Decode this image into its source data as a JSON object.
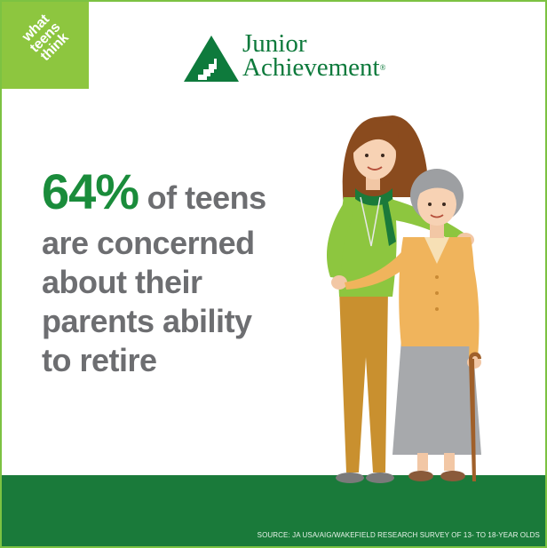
{
  "badge": {
    "line1": "what",
    "line2": "teens",
    "line3": "think"
  },
  "logo": {
    "line1": "Junior",
    "line2": "Achievement",
    "registered": "®"
  },
  "headline": {
    "percent": "64%",
    "line1_rest": " of teens",
    "line2": "are concerned",
    "line3": "about their",
    "line4": "parents ability",
    "line5": "to retire"
  },
  "source": "SOURCE: JA USA/AIG/WAKEFIELD RESEARCH SURVEY OF 13- TO 18-YEAR OLDS",
  "colors": {
    "brand_green": "#1a8c3b",
    "light_green": "#8dc63f",
    "dark_green": "#1a7a3a",
    "text_gray": "#6d6e71"
  },
  "icons": {
    "logo_mark": "ja-stairs-triangle-icon",
    "illustration": "teen-and-grandmother-illustration"
  }
}
